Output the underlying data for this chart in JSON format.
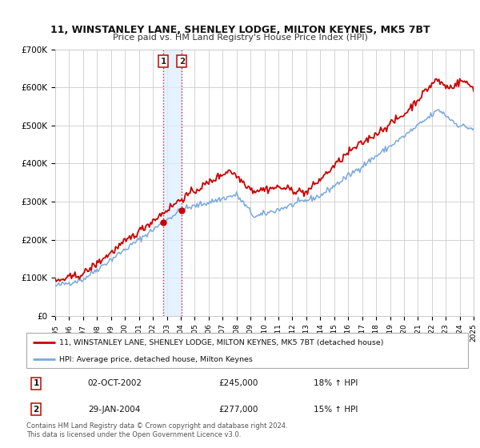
{
  "title": "11, WINSTANLEY LANE, SHENLEY LODGE, MILTON KEYNES, MK5 7BT",
  "subtitle": "Price paid vs. HM Land Registry's House Price Index (HPI)",
  "ylim": [
    0,
    700000
  ],
  "yticks": [
    0,
    100000,
    200000,
    300000,
    400000,
    500000,
    600000,
    700000
  ],
  "ytick_labels": [
    "£0",
    "£100K",
    "£200K",
    "£300K",
    "£400K",
    "£500K",
    "£600K",
    "£700K"
  ],
  "sale1_date_num": 2002.75,
  "sale1_price": 245000,
  "sale1_date_str": "02-OCT-2002",
  "sale1_pct": "18% ↑ HPI",
  "sale2_date_num": 2004.08,
  "sale2_price": 277000,
  "sale2_date_str": "29-JAN-2004",
  "sale2_pct": "15% ↑ HPI",
  "line_color_red": "#cc0000",
  "line_color_blue": "#7aaadd",
  "shade_color": "#ddeeff",
  "grid_color": "#cccccc",
  "bg_color": "#ffffff",
  "legend_label_red": "11, WINSTANLEY LANE, SHENLEY LODGE, MILTON KEYNES, MK5 7BT (detached house)",
  "legend_label_blue": "HPI: Average price, detached house, Milton Keynes",
  "footer": "Contains HM Land Registry data © Crown copyright and database right 2024.\nThis data is licensed under the Open Government Licence v3.0.",
  "xmin": 1995,
  "xmax": 2025
}
